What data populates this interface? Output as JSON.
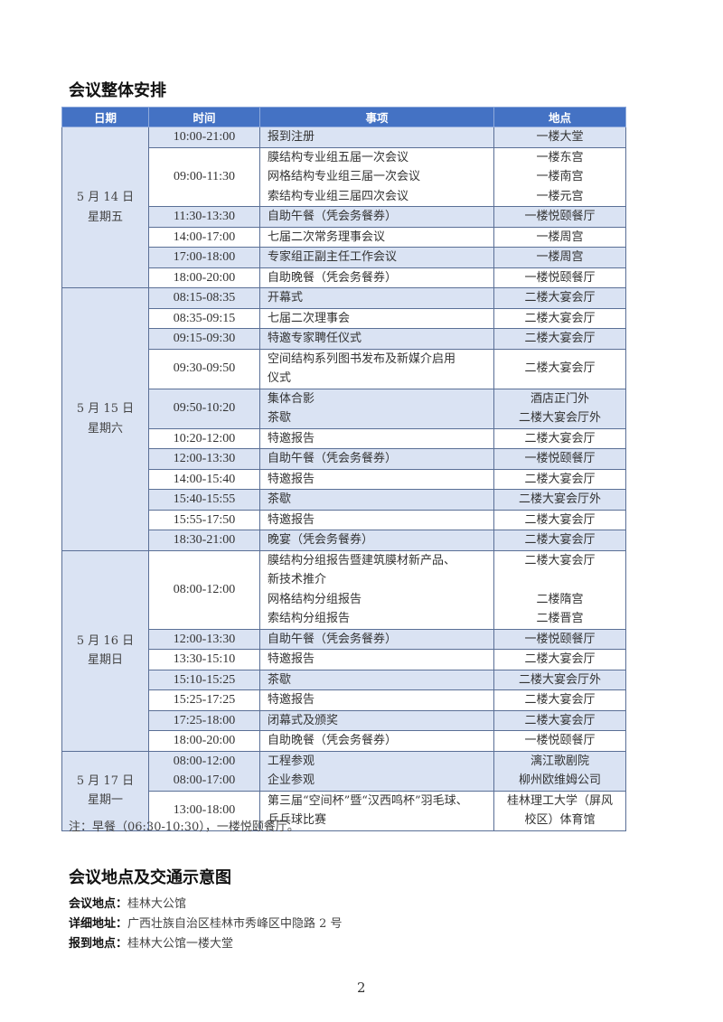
{
  "section1_title": "会议整体安排",
  "table": {
    "headers": [
      "日期",
      "时间",
      "事项",
      "地点"
    ],
    "days": [
      {
        "date": "5 月 14 日",
        "weekday": "星期五",
        "shaded": true,
        "rows": [
          {
            "time": "10:00-21:00",
            "items": [
              "报到注册"
            ],
            "locations": [
              "一楼大堂"
            ],
            "shaded": true
          },
          {
            "time": "09:00-11:30",
            "items": [
              "膜结构专业组五届一次会议",
              "网格结构专业组三届一次会议",
              "索结构专业组三届四次会议"
            ],
            "locations": [
              "一楼东宫",
              "一楼南宫",
              "一楼元宫"
            ],
            "shaded": false
          },
          {
            "time": "11:30-13:30",
            "items": [
              "自助午餐（凭会务餐券）"
            ],
            "locations": [
              "一楼悦颐餐厅"
            ],
            "shaded": true
          },
          {
            "time": "14:00-17:00",
            "items": [
              "七届二次常务理事会议"
            ],
            "locations": [
              "一楼周宫"
            ],
            "shaded": false
          },
          {
            "time": "17:00-18:00",
            "items": [
              "专家组正副主任工作会议"
            ],
            "locations": [
              "一楼周宫"
            ],
            "shaded": true
          },
          {
            "time": "18:00-20:00",
            "items": [
              "自助晚餐（凭会务餐券）"
            ],
            "locations": [
              "一楼悦颐餐厅"
            ],
            "shaded": false
          }
        ]
      },
      {
        "date": "5 月 15 日",
        "weekday": "星期六",
        "shaded": false,
        "rows": [
          {
            "time": "08:15-08:35",
            "items": [
              "开幕式"
            ],
            "locations": [
              "二楼大宴会厅"
            ],
            "shaded": true
          },
          {
            "time": "08:35-09:15",
            "items": [
              "七届二次理事会"
            ],
            "locations": [
              "二楼大宴会厅"
            ],
            "shaded": false
          },
          {
            "time": "09:15-09:30",
            "items": [
              "特邀专家聘任仪式"
            ],
            "locations": [
              "二楼大宴会厅"
            ],
            "shaded": true
          },
          {
            "time": "09:30-09:50",
            "items": [
              "空间结构系列图书发布及新媒介启用",
              "仪式"
            ],
            "locations": [
              "二楼大宴会厅"
            ],
            "shaded": false
          },
          {
            "time": "09:50-10:20",
            "items": [
              "集体合影",
              "茶歇"
            ],
            "locations": [
              "酒店正门外",
              "二楼大宴会厅外"
            ],
            "shaded": true
          },
          {
            "time": "10:20-12:00",
            "items": [
              "特邀报告"
            ],
            "locations": [
              "二楼大宴会厅"
            ],
            "shaded": false
          },
          {
            "time": "12:00-13:30",
            "items": [
              "自助午餐（凭会务餐券）"
            ],
            "locations": [
              "一楼悦颐餐厅"
            ],
            "shaded": true
          },
          {
            "time": "14:00-15:40",
            "items": [
              "特邀报告"
            ],
            "locations": [
              "二楼大宴会厅"
            ],
            "shaded": false
          },
          {
            "time": "15:40-15:55",
            "items": [
              "茶歇"
            ],
            "locations": [
              "二楼大宴会厅外"
            ],
            "shaded": true
          },
          {
            "time": "15:55-17:50",
            "items": [
              "特邀报告"
            ],
            "locations": [
              "二楼大宴会厅"
            ],
            "shaded": false
          },
          {
            "time": "18:30-21:00",
            "items": [
              "晚宴（凭会务餐券）"
            ],
            "locations": [
              "二楼大宴会厅"
            ],
            "shaded": true
          }
        ]
      },
      {
        "date": "5 月 16 日",
        "weekday": "星期日",
        "shaded": true,
        "rows": [
          {
            "time": "08:00-12:00",
            "items": [
              "膜结构分组报告暨建筑膜材新产品、",
              "新技术推介",
              "网格结构分组报告",
              "索结构分组报告"
            ],
            "locations": [
              "二楼大宴会厅",
              "",
              "二楼隋宫",
              "二楼晋宫"
            ],
            "shaded": false
          },
          {
            "time": "12:00-13:30",
            "items": [
              "自助午餐（凭会务餐券）"
            ],
            "locations": [
              "一楼悦颐餐厅"
            ],
            "shaded": true
          },
          {
            "time": "13:30-15:10",
            "items": [
              "特邀报告"
            ],
            "locations": [
              "二楼大宴会厅"
            ],
            "shaded": false
          },
          {
            "time": "15:10-15:25",
            "items": [
              "茶歇"
            ],
            "locations": [
              "二楼大宴会厅外"
            ],
            "shaded": true
          },
          {
            "time": "15:25-17:25",
            "items": [
              "特邀报告"
            ],
            "locations": [
              "二楼大宴会厅"
            ],
            "shaded": false
          },
          {
            "time": "17:25-18:00",
            "items": [
              "闭幕式及颁奖"
            ],
            "locations": [
              "二楼大宴会厅"
            ],
            "shaded": true
          },
          {
            "time": "18:00-20:00",
            "items": [
              "自助晚餐（凭会务餐券）"
            ],
            "locations": [
              "一楼悦颐餐厅"
            ],
            "shaded": false
          }
        ]
      },
      {
        "date": "5 月 17 日",
        "weekday": "星期一",
        "shaded": false,
        "rows": [
          {
            "time": [
              "08:00-12:00",
              "08:00-17:00"
            ],
            "items": [
              "工程参观",
              "企业参观"
            ],
            "locations": [
              "漓江歌剧院",
              "柳州欧维姆公司"
            ],
            "shaded": true
          },
          {
            "time": "13:00-18:00",
            "items": [
              "第三届“空间杯”暨“汉西鸣杯”羽毛球、",
              "乒乓球比赛"
            ],
            "locations": [
              "桂林理工大学（屏风",
              "校区）体育馆"
            ],
            "shaded": false
          }
        ]
      }
    ]
  },
  "note": "注：早餐（06:30-10:30），一楼悦颐餐厅。",
  "section2_title": "会议地点及交通示意图",
  "info": [
    {
      "label": "会议地点：",
      "value": "桂林大公馆"
    },
    {
      "label": "详细地址：",
      "value": "广西壮族自治区桂林市秀峰区中隐路 2 号"
    },
    {
      "label": "报到地点：",
      "value": "桂林大公馆一楼大堂"
    }
  ],
  "page_number": "2",
  "colors": {
    "header_bg": "#4472c4",
    "shade_bg": "#dae3f3"
  }
}
